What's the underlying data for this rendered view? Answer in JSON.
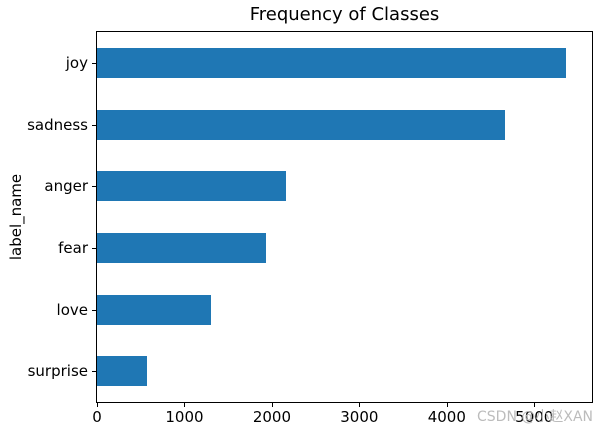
{
  "chart_data": {
    "type": "bar",
    "orientation": "horizontal",
    "title": "Frequency of Classes",
    "ylabel": "label_name",
    "xlabel": "",
    "categories": [
      "joy",
      "sadness",
      "anger",
      "fear",
      "love",
      "surprise"
    ],
    "values": [
      5362,
      4666,
      2159,
      1937,
      1304,
      572
    ],
    "x_tick_labels": [
      "0",
      "1000",
      "2000",
      "3000",
      "4000",
      "5000"
    ],
    "x_tick_values": [
      0,
      1000,
      2000,
      3000,
      4000,
      5000
    ],
    "xlim": [
      0,
      5660
    ],
    "bar_color": "#1f77b4",
    "grid": false,
    "legend": "none"
  },
  "watermark": {
    "text": "CSDN @小赵XAN",
    "color": "#b9b9b9"
  }
}
